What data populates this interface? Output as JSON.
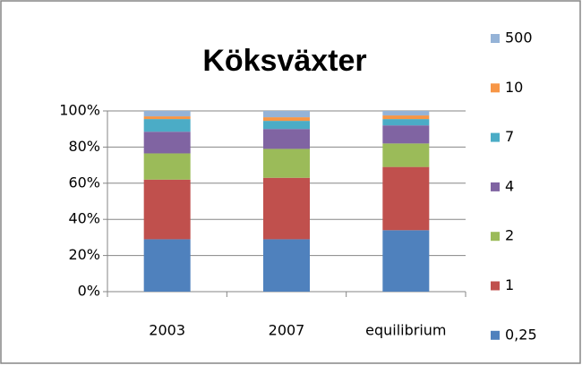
{
  "chart_data": {
    "type": "bar",
    "stacked": true,
    "title": "Köksväxter",
    "categories": [
      "2003",
      "2007",
      "equilibrium"
    ],
    "series": [
      {
        "name": "0,25",
        "color": "#4f81bd",
        "values": [
          29,
          29,
          34
        ]
      },
      {
        "name": "1",
        "color": "#c0504d",
        "values": [
          33,
          34,
          35
        ]
      },
      {
        "name": "2",
        "color": "#9bbb59",
        "values": [
          14.5,
          16,
          13
        ]
      },
      {
        "name": "4",
        "color": "#8064a2",
        "values": [
          12,
          11,
          10
        ]
      },
      {
        "name": "7",
        "color": "#4bacc6",
        "values": [
          7,
          4.5,
          3.5
        ]
      },
      {
        "name": "10",
        "color": "#f79646",
        "values": [
          1.5,
          2,
          2
        ]
      },
      {
        "name": "500",
        "color": "#95b3d7",
        "values": [
          3,
          3.5,
          2.5
        ]
      }
    ],
    "ylim": [
      0,
      100
    ],
    "yticks": [
      {
        "value": 0,
        "label": "0%"
      },
      {
        "value": 20,
        "label": "20%"
      },
      {
        "value": 40,
        "label": "40%"
      },
      {
        "value": 60,
        "label": "60%"
      },
      {
        "value": 80,
        "label": "80%"
      },
      {
        "value": 100,
        "label": "100%"
      }
    ],
    "grid": true,
    "legend": "right"
  }
}
